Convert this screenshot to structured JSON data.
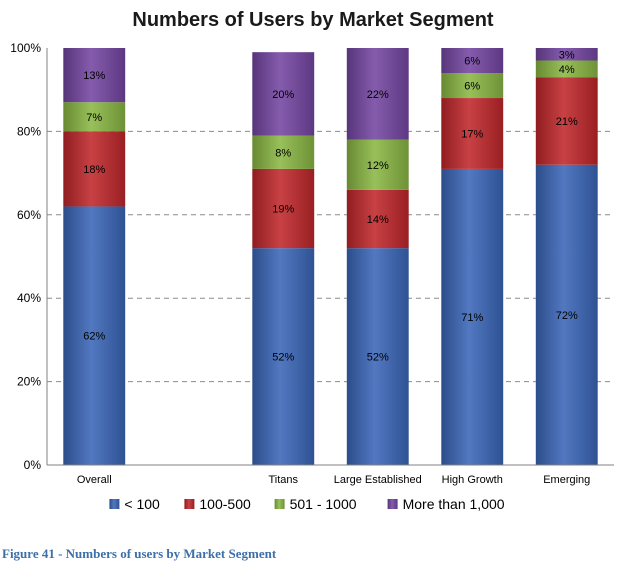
{
  "caption": "Figure 41 - Numbers of users by Market Segment",
  "chart_data": {
    "type": "bar",
    "stacked": true,
    "percent": true,
    "title": "Numbers of Users by Market Segment",
    "xlabel": "",
    "ylabel": "",
    "ylim": [
      0,
      100
    ],
    "yticks": [
      "0%",
      "20%",
      "40%",
      "60%",
      "80%",
      "100%"
    ],
    "grid": true,
    "legend_position": "bottom",
    "slots": [
      "Overall",
      "",
      "Titans",
      "Large Established",
      "High Growth",
      "Emerging"
    ],
    "categories": [
      "Overall",
      "Titans",
      "Large Established",
      "High Growth",
      "Emerging"
    ],
    "series": [
      {
        "name": "< 100",
        "color": "#3a66b8",
        "values": [
          62,
          52,
          52,
          71,
          72
        ],
        "labels": [
          "62%",
          "52%",
          "52%",
          "71%",
          "72%"
        ]
      },
      {
        "name": "100-500",
        "color": "#c0272b",
        "values": [
          18,
          19,
          14,
          17,
          21
        ],
        "labels": [
          "18%",
          "19%",
          "14%",
          "17%",
          "21%"
        ]
      },
      {
        "name": "501 - 1000",
        "color": "#8ab743",
        "values": [
          7,
          8,
          12,
          6,
          4
        ],
        "labels": [
          "7%",
          "8%",
          "12%",
          "6%",
          "4%"
        ]
      },
      {
        "name": "More than 1,000",
        "color": "#7446a2",
        "values": [
          13,
          20,
          22,
          6,
          3
        ],
        "labels": [
          "13%",
          "20%",
          "22%",
          "6%",
          "3%"
        ]
      }
    ]
  }
}
